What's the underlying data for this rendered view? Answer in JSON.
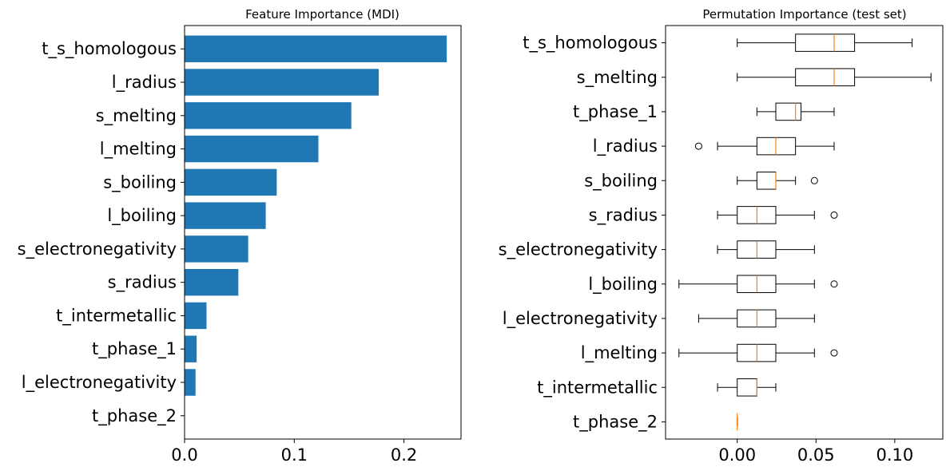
{
  "chart_data": [
    {
      "type": "bar",
      "orientation": "horizontal",
      "title": "Feature Importance (MDI)",
      "xlabel": "",
      "ylabel": "",
      "color": "#1f77b4",
      "xlim": [
        0,
        0.252
      ],
      "xticks": [
        0.0,
        0.1,
        0.2
      ],
      "xtick_labels": [
        "0.0",
        "0.1",
        "0.2"
      ],
      "categories": [
        "t_s_homologous",
        "l_radius",
        "s_melting",
        "l_melting",
        "s_boiling",
        "l_boiling",
        "s_electronegativity",
        "s_radius",
        "t_intermetallic",
        "t_phase_1",
        "l_electronegativity",
        "t_phase_2"
      ],
      "values": [
        0.239,
        0.177,
        0.152,
        0.122,
        0.084,
        0.074,
        0.058,
        0.049,
        0.02,
        0.011,
        0.01,
        0.0
      ],
      "grid": false
    },
    {
      "type": "boxplot",
      "orientation": "horizontal",
      "title": "Permutation Importance (test set)",
      "xlabel": "",
      "ylabel": "",
      "box_color": "#000000",
      "median_color": "#ff7f0e",
      "xlim": [
        -0.0455,
        0.1305
      ],
      "xticks": [
        0.0,
        0.05,
        0.1
      ],
      "xtick_labels": [
        "0.00",
        "0.05",
        "0.10"
      ],
      "grid": false,
      "series": [
        {
          "name": "t_s_homologous",
          "whislo": 0.0,
          "q1": 0.037,
          "med": 0.0615,
          "q3": 0.0745,
          "whishi": 0.111,
          "fliers": []
        },
        {
          "name": "s_melting",
          "whislo": 0.0,
          "q1": 0.037,
          "med": 0.0615,
          "q3": 0.0745,
          "whishi": 0.123,
          "fliers": []
        },
        {
          "name": "t_phase_1",
          "whislo": 0.0125,
          "q1": 0.0245,
          "med": 0.037,
          "q3": 0.0405,
          "whishi": 0.0615,
          "fliers": []
        },
        {
          "name": "l_radius",
          "whislo": -0.0125,
          "q1": 0.0125,
          "med": 0.0245,
          "q3": 0.037,
          "whishi": 0.0615,
          "fliers": [
            -0.0245
          ]
        },
        {
          "name": "s_boiling",
          "whislo": 0.0,
          "q1": 0.0125,
          "med": 0.0245,
          "q3": 0.0245,
          "whishi": 0.037,
          "fliers": [
            0.049
          ]
        },
        {
          "name": "s_radius",
          "whislo": -0.0125,
          "q1": 0.0,
          "med": 0.0125,
          "q3": 0.0245,
          "whishi": 0.049,
          "fliers": [
            0.0615
          ]
        },
        {
          "name": "s_electronegativity",
          "whislo": -0.0125,
          "q1": 0.0,
          "med": 0.0125,
          "q3": 0.0245,
          "whishi": 0.049,
          "fliers": []
        },
        {
          "name": "l_boiling",
          "whislo": -0.037,
          "q1": 0.0,
          "med": 0.0125,
          "q3": 0.0245,
          "whishi": 0.049,
          "fliers": [
            0.0615
          ]
        },
        {
          "name": "l_electronegativity",
          "whislo": -0.0245,
          "q1": 0.0,
          "med": 0.0125,
          "q3": 0.0245,
          "whishi": 0.049,
          "fliers": []
        },
        {
          "name": "l_melting",
          "whislo": -0.037,
          "q1": 0.0,
          "med": 0.0125,
          "q3": 0.0245,
          "whishi": 0.049,
          "fliers": [
            0.0615
          ]
        },
        {
          "name": "t_intermetallic",
          "whislo": -0.0125,
          "q1": 0.0,
          "med": 0.0125,
          "q3": 0.0125,
          "whishi": 0.0245,
          "fliers": []
        },
        {
          "name": "t_phase_2",
          "whislo": 0.0,
          "q1": 0.0,
          "med": 0.0,
          "q3": 0.0,
          "whishi": 0.0,
          "fliers": []
        }
      ]
    }
  ]
}
